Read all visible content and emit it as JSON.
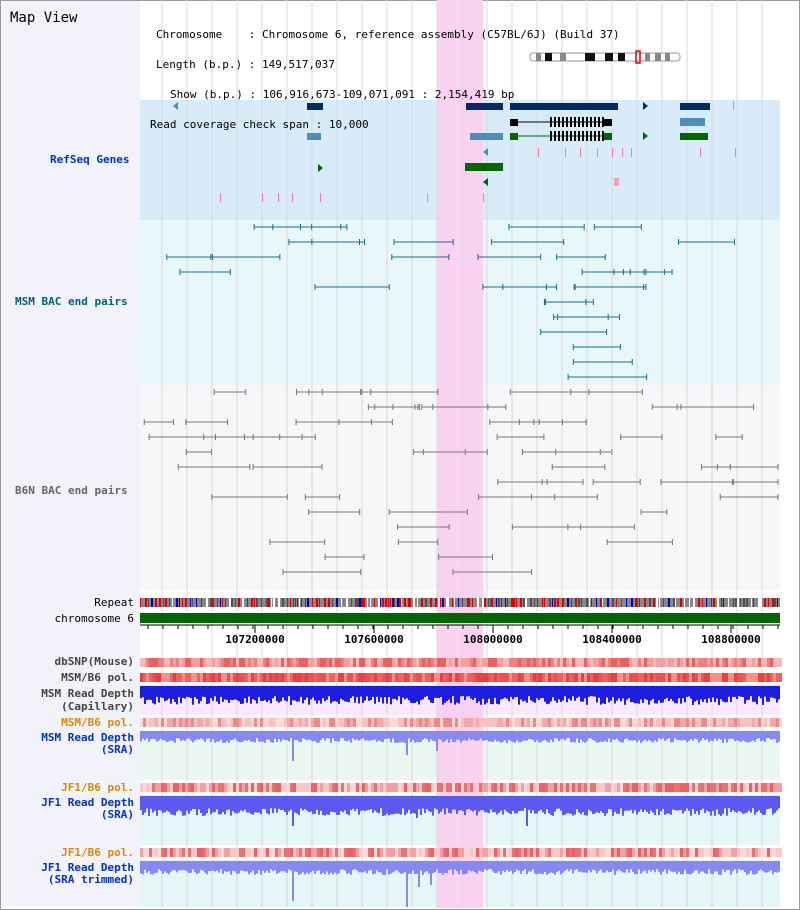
{
  "title": "Map View",
  "info": {
    "chromosome_label": "Chromosome",
    "chromosome_value": "Chromosome 6, reference assembly (C57BL/6J) (Build 37)",
    "length_label": "Length (b.p.)",
    "length_value": "149,517,037",
    "show_label": "Show (b.p.)",
    "show_value": "106,916,673-109,071,091 : 2,154,419 bp",
    "coverage_label": "Read coverage check span",
    "coverage_value": "10,000"
  },
  "tracks": {
    "refseq": "RefSeq Genes",
    "msm_bac": "MSM BAC end pairs",
    "b6n_bac": "B6N BAC end pairs",
    "repeat": "Repeat",
    "chromosome": "chromosome 6",
    "dbsnp": "dbSNP(Mouse)",
    "msm_b6_pol_1": "MSM/B6 pol.",
    "msm_depth_cap_1": "MSM Read Depth",
    "msm_depth_cap_2": "(Capillary)",
    "msm_b6_pol_2": "MSM/B6 pol.",
    "msm_depth_sra_1": "MSM Read Depth",
    "msm_depth_sra_2": "(SRA)",
    "jf1_b6_pol_1": "JF1/B6 pol.",
    "jf1_depth_sra_1": "JF1 Read Depth",
    "jf1_depth_sra_2": "(SRA)",
    "jf1_b6_pol_2": "JF1/B6 pol.",
    "jf1_depth_trim_1": "JF1 Read Depth",
    "jf1_depth_trim_2": "(SRA trimmed)"
  },
  "axis": {
    "ticks": [
      "107200000",
      "107600000",
      "108000000",
      "108400000",
      "108800000"
    ]
  },
  "colors": {
    "highlight": "#f9d2f2",
    "refseq_bg": "#d7ecf8",
    "msm_bg": "#e8f8fa",
    "chrom_green": "#006600",
    "gene_dark": "#002b66",
    "gene_mid": "#4a8fb8",
    "gene_green": "#006600",
    "bac_teal": "#1a6c8c",
    "bac_gray": "#777777",
    "depth_blue": "#1d1de0",
    "depth_light": "#8888f4"
  }
}
